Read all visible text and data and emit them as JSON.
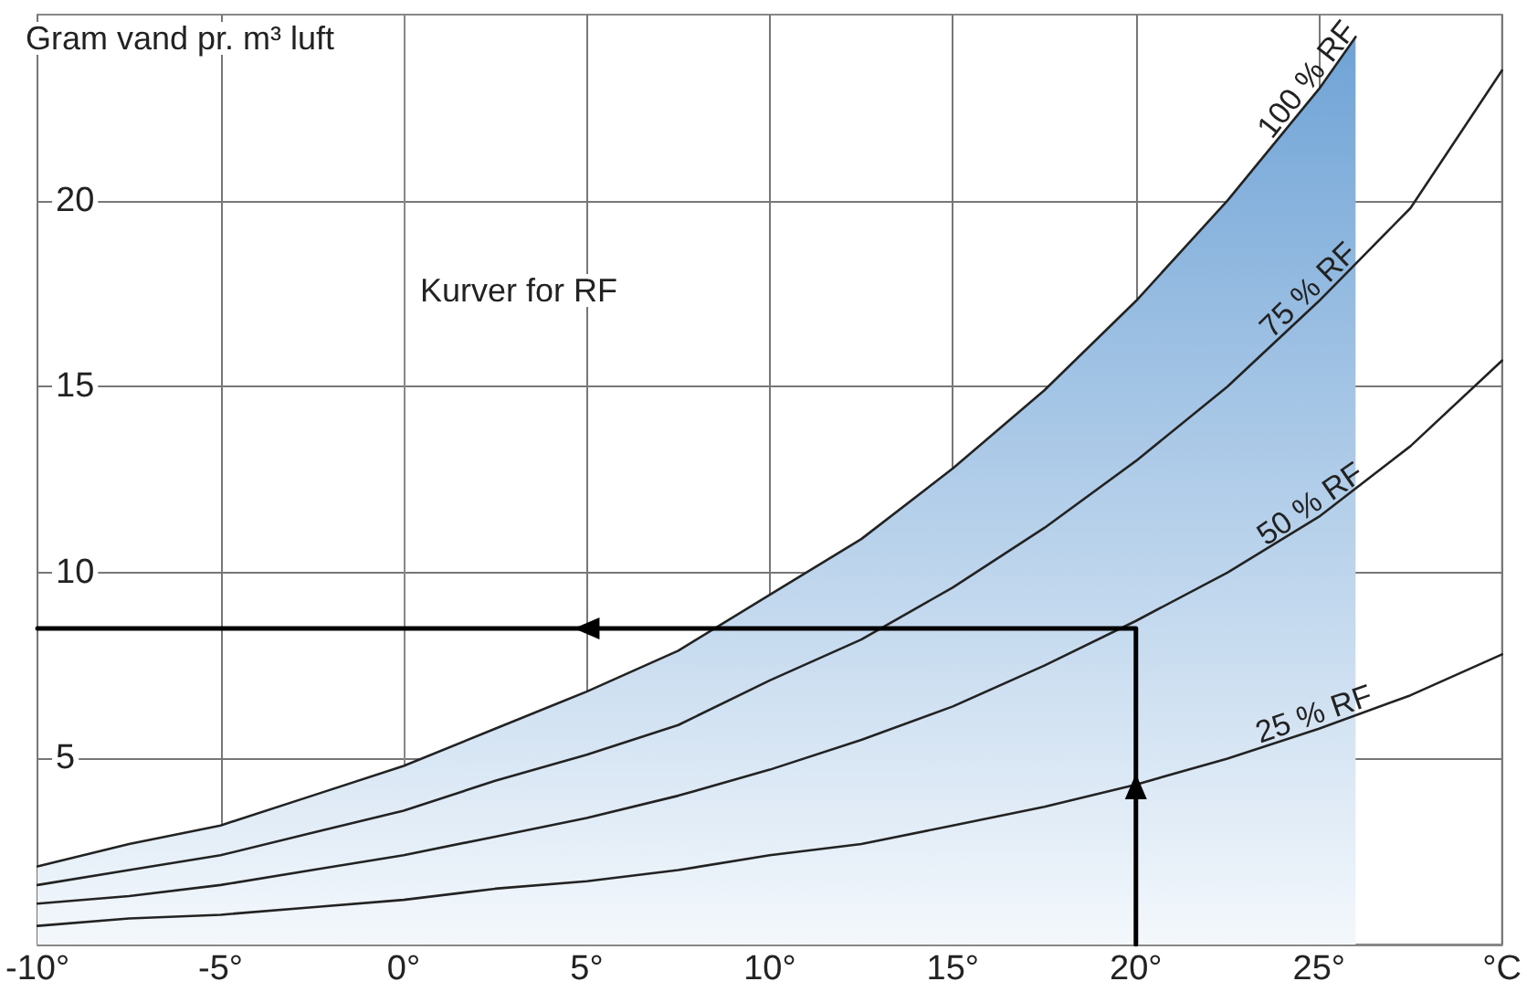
{
  "chart_data": {
    "type": "line",
    "ylabel": "Gram vand pr. m³ luft",
    "annotations": [
      "Kurver for RF"
    ],
    "x": [
      -10,
      -7.5,
      -5,
      -2.5,
      0,
      2.5,
      5,
      7.5,
      10,
      12.5,
      15,
      17.5,
      20,
      22.5,
      25,
      27.5,
      30
    ],
    "series": [
      {
        "name": "100 % RF",
        "type": "area",
        "color": "#222222",
        "x": [
          -10,
          -7.5,
          -5,
          -2.5,
          0,
          2.5,
          5,
          7.5,
          10,
          12.5,
          15,
          17.5,
          20,
          22.5,
          25,
          26
        ],
        "values": [
          2.1,
          2.7,
          3.2,
          4.0,
          4.8,
          5.8,
          6.8,
          7.9,
          9.4,
          10.9,
          12.8,
          14.9,
          17.3,
          20.0,
          23.0,
          24.4
        ]
      },
      {
        "name": "75 % RF",
        "color": "#222222",
        "values": [
          1.6,
          2.0,
          2.4,
          3.0,
          3.6,
          4.4,
          5.1,
          5.9,
          7.1,
          8.2,
          9.6,
          11.2,
          13.0,
          15.0,
          17.3,
          19.8,
          23.5
        ]
      },
      {
        "name": "50 % RF",
        "color": "#222222",
        "values": [
          1.1,
          1.3,
          1.6,
          2.0,
          2.4,
          2.9,
          3.4,
          4.0,
          4.7,
          5.5,
          6.4,
          7.5,
          8.7,
          10.0,
          11.5,
          13.4,
          15.7
        ]
      },
      {
        "name": "25 % RF",
        "color": "#222222",
        "values": [
          0.5,
          0.7,
          0.8,
          1.0,
          1.2,
          1.5,
          1.7,
          2.0,
          2.4,
          2.7,
          3.2,
          3.7,
          4.3,
          5.0,
          5.8,
          6.7,
          7.8
        ]
      },
      {
        "x": [
          20,
          20,
          -10
        ],
        "values": [
          0,
          8.5,
          8.5
        ],
        "color": "#000000"
      }
    ],
    "xlim": [
      -10,
      30
    ],
    "ylim": [
      0,
      25
    ],
    "xticks": [
      {
        "value": -10,
        "label": "-10°"
      },
      {
        "value": -5,
        "label": "-5°"
      },
      {
        "value": 0,
        "label": "0°"
      },
      {
        "value": 5,
        "label": "5°"
      },
      {
        "value": 10,
        "label": "10°"
      },
      {
        "value": 15,
        "label": "15°"
      },
      {
        "value": 20,
        "label": "20°"
      },
      {
        "value": 25,
        "label": "25°"
      },
      {
        "value": 30,
        "label": "°C"
      }
    ],
    "yticks": [
      5,
      10,
      15,
      20
    ],
    "grid": true,
    "marker": "none",
    "line_style": "solid"
  }
}
